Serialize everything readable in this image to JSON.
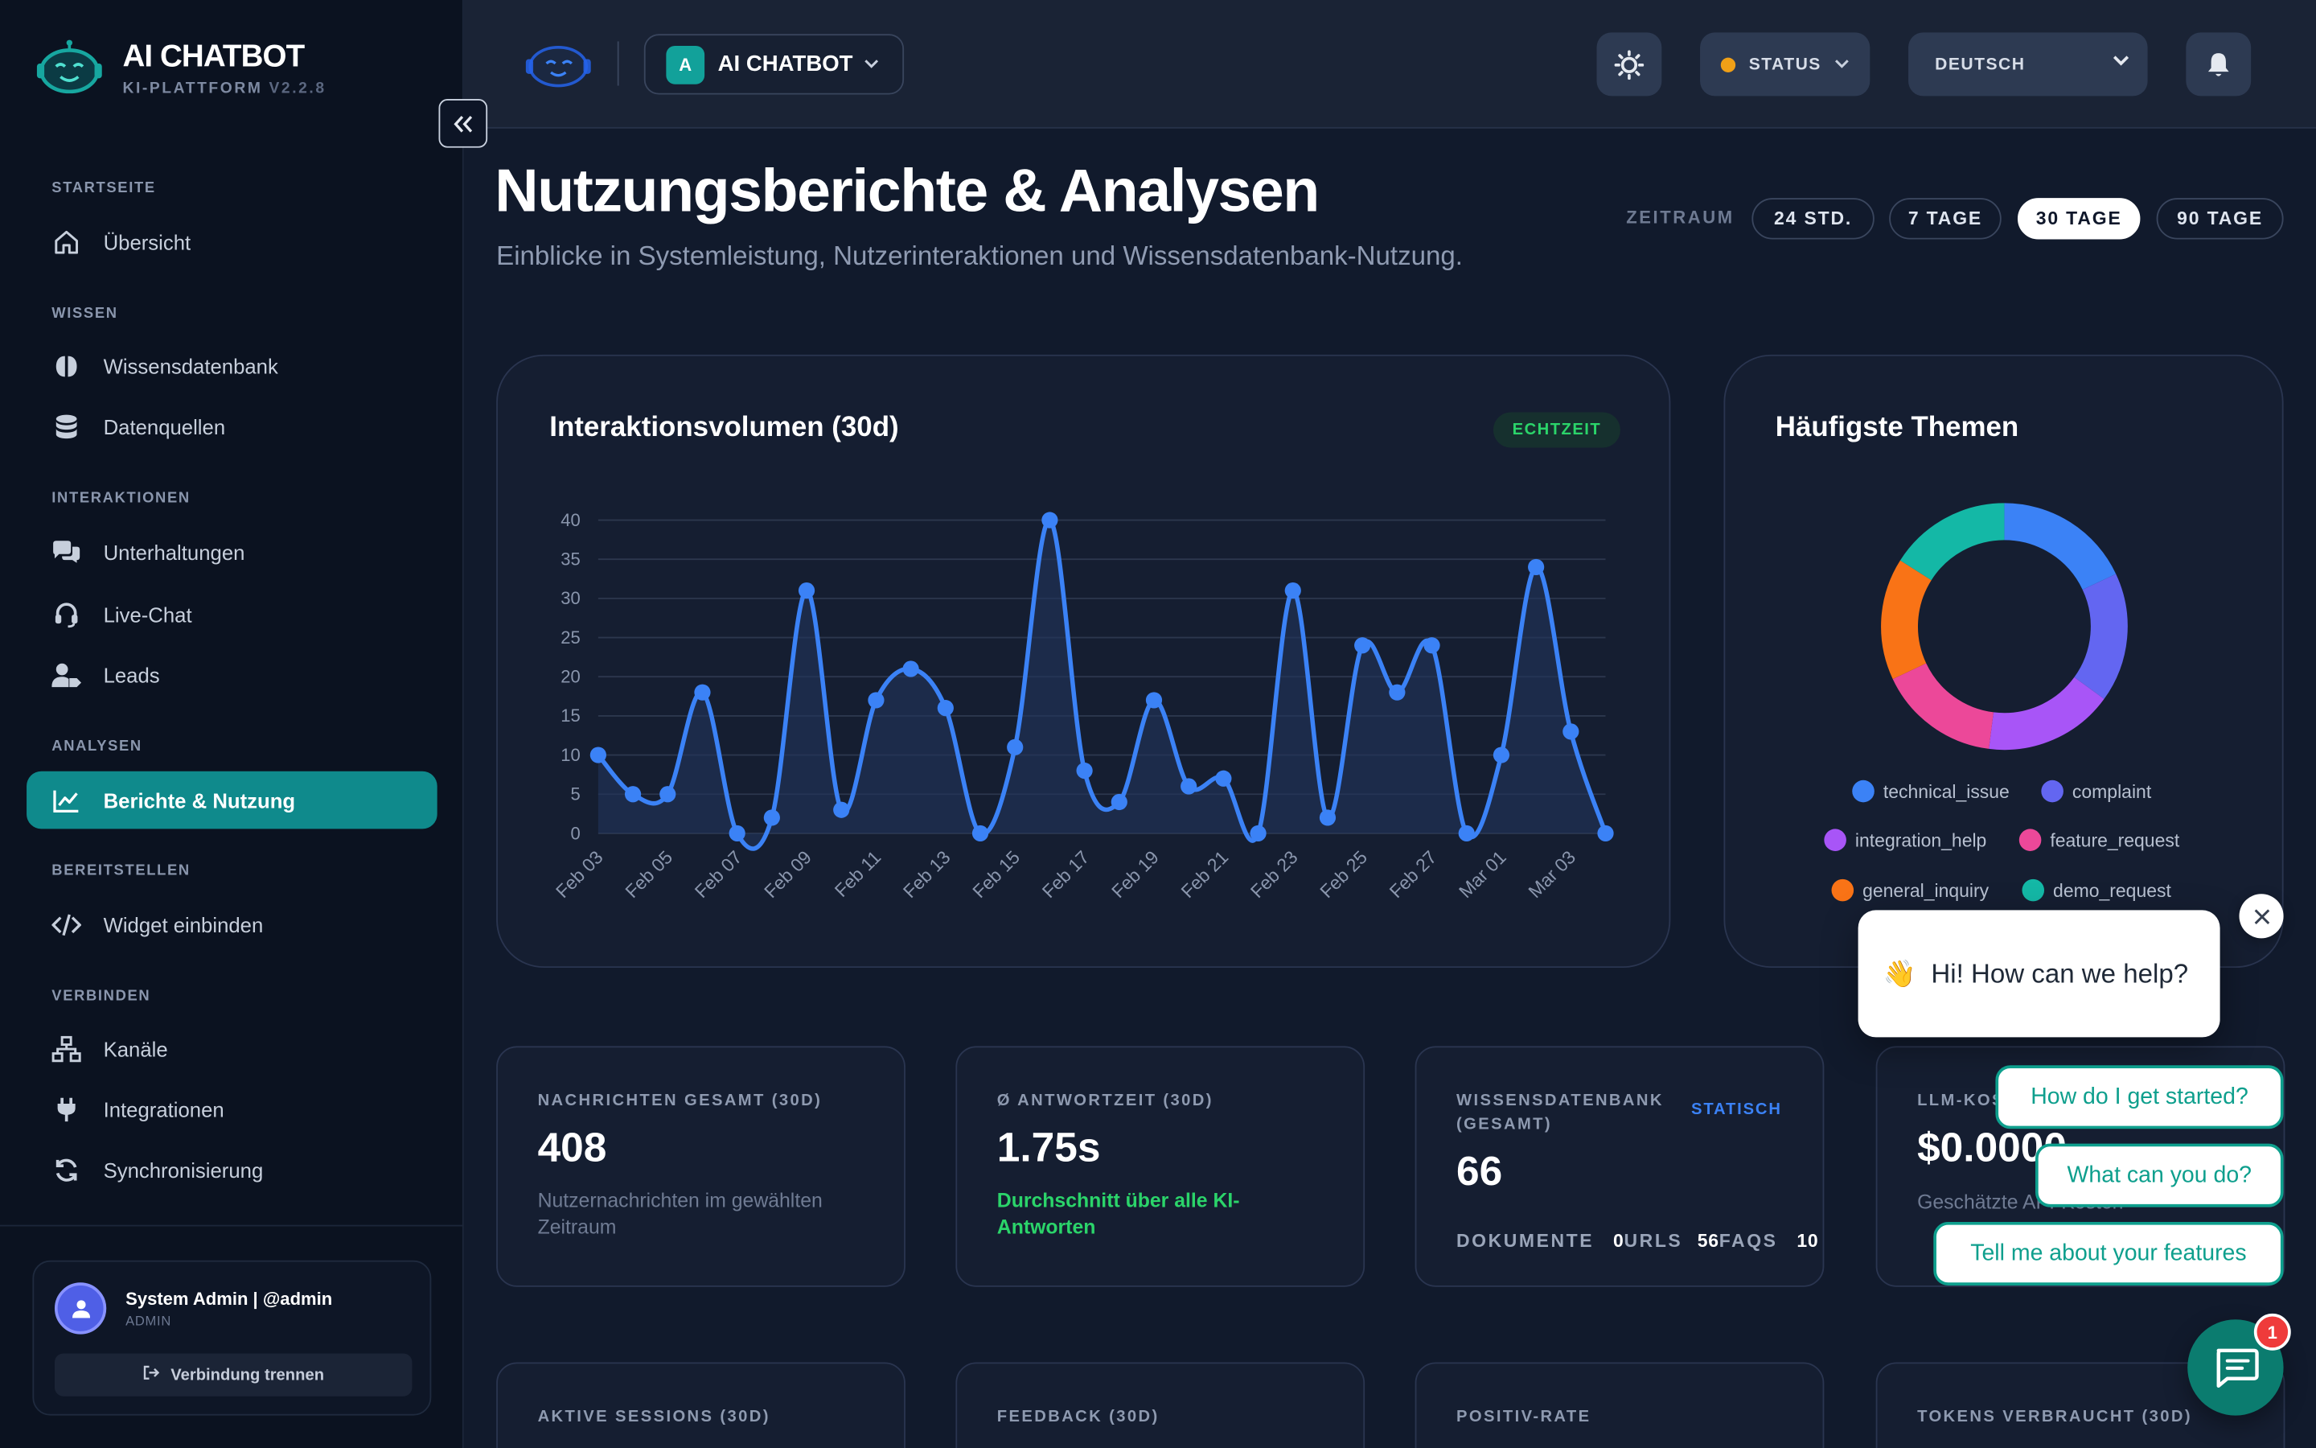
{
  "app": {
    "title": "AI CHATBOT",
    "subtitle": "KI-PLATTFORM",
    "version": "V2.2.8"
  },
  "sidebar": {
    "sections": [
      {
        "label": "STARTSEITE"
      },
      {
        "label": "WISSEN"
      },
      {
        "label": "INTERAKTIONEN"
      },
      {
        "label": "ANALYSEN"
      },
      {
        "label": "BEREITSTELLEN"
      },
      {
        "label": "VERBINDEN"
      }
    ],
    "items": [
      {
        "label": "Übersicht",
        "icon": "home-icon"
      },
      {
        "label": "Wissensdatenbank",
        "icon": "brain-icon"
      },
      {
        "label": "Datenquellen",
        "icon": "database-icon"
      },
      {
        "label": "Unterhaltungen",
        "icon": "comments-icon"
      },
      {
        "label": "Live-Chat",
        "icon": "headset-icon"
      },
      {
        "label": "Leads",
        "icon": "user-tag-icon"
      },
      {
        "label": "Berichte & Nutzung",
        "icon": "chart-line-icon",
        "active": true
      },
      {
        "label": "Widget einbinden",
        "icon": "code-icon"
      },
      {
        "label": "Kanäle",
        "icon": "sitemap-icon"
      },
      {
        "label": "Integrationen",
        "icon": "plug-icon"
      },
      {
        "label": "Synchronisierung",
        "icon": "sync-icon"
      }
    ],
    "user": {
      "name": "System Admin | @admin",
      "role": "ADMIN",
      "disconnect_label": "Verbindung trennen"
    }
  },
  "topbar": {
    "bot_badge": "A",
    "bot_name": "AI CHATBOT",
    "status_label": "STATUS",
    "status_color": "#f0a017",
    "language": "DEUTSCH"
  },
  "page": {
    "title": "Nutzungsberichte & Analysen",
    "subtitle": "Einblicke in Systemleistung, Nutzerinteraktionen und Wissensdatenbank-Nutzung.",
    "range_label": "ZEITRAUM",
    "ranges": [
      "24 STD.",
      "7 TAGE",
      "30 TAGE",
      "90 TAGE"
    ],
    "active_range": "30 TAGE"
  },
  "interactions_card": {
    "title": "Interaktionsvolumen (30d)",
    "badge": "ECHTZEIT"
  },
  "topics_card": {
    "title": "Häufigste Themen"
  },
  "chart_data": [
    {
      "type": "area",
      "title": "Interaktionsvolumen (30d)",
      "x": [
        "Feb 03",
        "Feb 04",
        "Feb 05",
        "Feb 06",
        "Feb 07",
        "Feb 08",
        "Feb 09",
        "Feb 10",
        "Feb 11",
        "Feb 12",
        "Feb 13",
        "Feb 14",
        "Feb 15",
        "Feb 16",
        "Feb 17",
        "Feb 18",
        "Feb 19",
        "Feb 20",
        "Feb 21",
        "Feb 22",
        "Feb 23",
        "Feb 24",
        "Feb 25",
        "Feb 26",
        "Feb 27",
        "Feb 28",
        "Mar 01",
        "Mar 02",
        "Mar 03",
        "Mar 04"
      ],
      "x_tick_labels": [
        "Feb 03",
        "Feb 05",
        "Feb 07",
        "Feb 09",
        "Feb 11",
        "Feb 13",
        "Feb 15",
        "Feb 17",
        "Feb 19",
        "Feb 21",
        "Feb 23",
        "Feb 25",
        "Feb 27",
        "Mar 01",
        "Mar 03"
      ],
      "values": [
        10,
        5,
        5,
        18,
        0,
        2,
        31,
        3,
        17,
        21,
        16,
        0,
        11,
        40,
        8,
        4,
        17,
        6,
        7,
        0,
        31,
        2,
        24,
        18,
        24,
        0,
        10,
        34,
        13,
        0
      ],
      "y_ticks": [
        0,
        5,
        10,
        15,
        20,
        25,
        30,
        35,
        40
      ],
      "ylim": [
        0,
        40
      ],
      "grid": true,
      "color": "#3b82f6"
    },
    {
      "type": "pie",
      "title": "Häufigste Themen",
      "donut": true,
      "legend_position": "bottom",
      "slices": [
        {
          "label": "technical_issue",
          "value": 18,
          "color": "#3b82f6"
        },
        {
          "label": "complaint",
          "value": 17,
          "color": "#6366f1"
        },
        {
          "label": "integration_help",
          "value": 17,
          "color": "#a855f7"
        },
        {
          "label": "feature_request",
          "value": 16,
          "color": "#ec4899"
        },
        {
          "label": "general_inquiry",
          "value": 16,
          "color": "#f97316"
        },
        {
          "label": "demo_request",
          "value": 16,
          "color": "#14b8a6"
        }
      ]
    }
  ],
  "stats": {
    "messages": {
      "label": "NACHRICHTEN GESAMT (30D)",
      "value": "408",
      "desc": "Nutzernachrichten im gewählten Zeitraum"
    },
    "response": {
      "label": "Ø ANTWORTZEIT (30D)",
      "value": "1.75s",
      "desc": "Durchschnitt über alle KI-Antworten"
    },
    "kb": {
      "label": "WISSENSDATENBANK (GESAMT)",
      "tag": "STATISCH",
      "value": "66",
      "docs_label": "DOKUMENTE",
      "docs": "0",
      "urls_label": "URLS",
      "urls": "56",
      "faqs_label": "FAQS",
      "faqs": "10"
    },
    "llm": {
      "label": "LLM-KOSTEN",
      "value": "$0.0000",
      "desc": "Geschätzte API-Kosten"
    },
    "sessions": {
      "label": "AKTIVE SESSIONS (30D)"
    },
    "feedback": {
      "label": "FEEDBACK (30D)"
    },
    "positive": {
      "label": "POSITIV-RATE"
    },
    "tokens": {
      "label": "TOKENS VERBRAUCHT (30D)"
    }
  },
  "chat_widget": {
    "greeting": "Hi! How can we help?",
    "greeting_emoji": "👋",
    "quick_replies": [
      "How do I get started?",
      "What can you do?",
      "Tell me about your features"
    ],
    "unread": "1"
  }
}
